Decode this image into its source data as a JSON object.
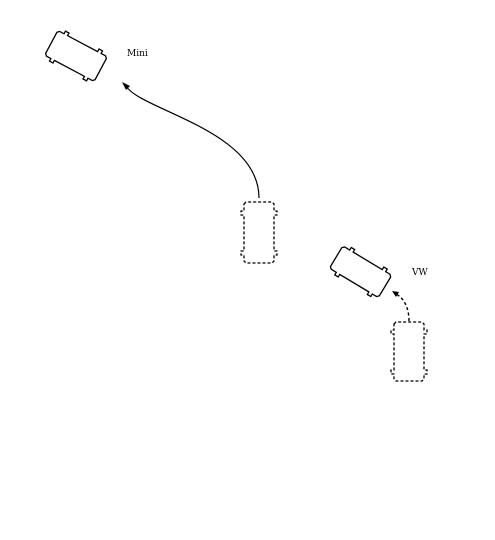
{
  "labels": {
    "mini": "Mini",
    "vw": "VW"
  },
  "cars": {
    "mini_start": {
      "style": "dashed",
      "icon": "car-outline-icon"
    },
    "mini_end": {
      "style": "solid",
      "icon": "car-outline-icon"
    },
    "vw_start": {
      "style": "dashed",
      "icon": "car-outline-icon"
    },
    "vw_end": {
      "style": "solid",
      "icon": "car-outline-icon"
    }
  },
  "colors": {
    "stroke": "#000000",
    "background": "#ffffff"
  }
}
